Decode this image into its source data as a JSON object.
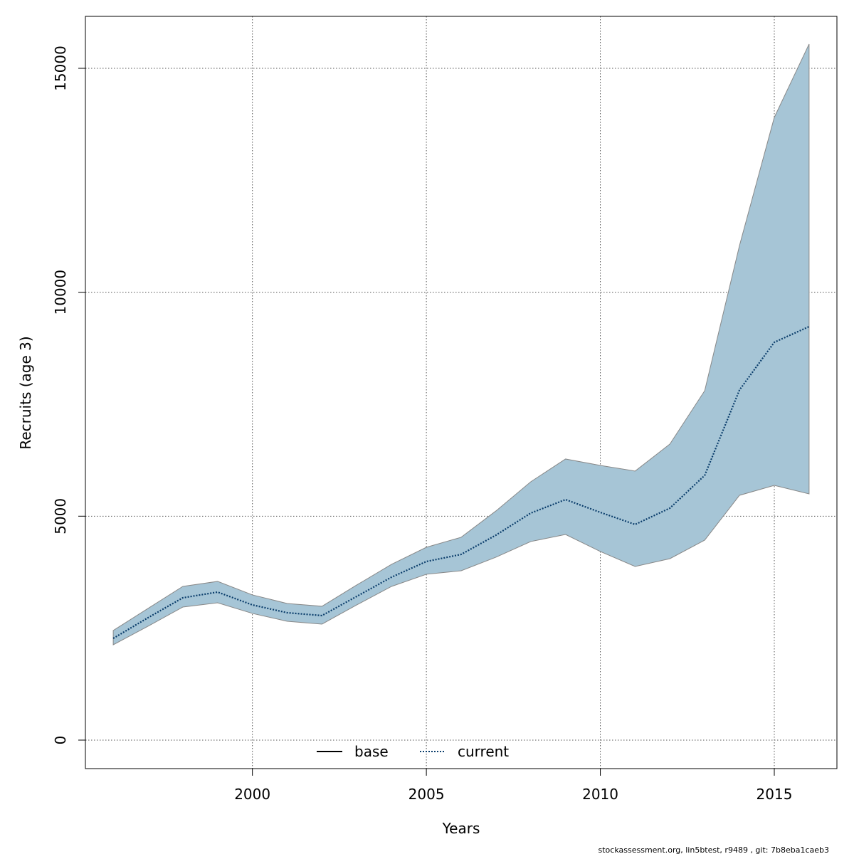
{
  "chart_data": {
    "type": "line",
    "x_label": "Years",
    "y_label": "Recruits (age 3)",
    "x": [
      1996,
      1997,
      1998,
      1999,
      2000,
      2001,
      2002,
      2003,
      2004,
      2005,
      2006,
      2007,
      2008,
      2009,
      2010,
      2011,
      2012,
      2013,
      2014,
      2015,
      2016
    ],
    "series": [
      {
        "name": "current",
        "color": "#0a3d6b",
        "band_color": "#a6c5d6",
        "values": [
          2272,
          2733,
          3178,
          3305,
          3019,
          2844,
          2781,
          3210,
          3639,
          3988,
          4147,
          4577,
          5069,
          5371,
          5085,
          4815,
          5180,
          5911,
          7818,
          8883,
          9233
        ],
        "lower": [
          2129,
          2543,
          2971,
          3067,
          2829,
          2654,
          2590,
          3019,
          3432,
          3703,
          3782,
          4084,
          4434,
          4592,
          4211,
          3877,
          4052,
          4465,
          5466,
          5689,
          5498
        ],
        "upper": [
          2447,
          2940,
          3432,
          3544,
          3242,
          3051,
          2988,
          3464,
          3925,
          4306,
          4529,
          5117,
          5768,
          6277,
          6134,
          6007,
          6611,
          7802,
          11044,
          13904,
          15541
        ]
      }
    ],
    "legend": [
      {
        "name": "base",
        "color": "#000000",
        "dash": "solid"
      },
      {
        "name": "current",
        "color": "#0a3d6b",
        "dash": "dotted"
      }
    ],
    "legend_position": "bottom",
    "xlim": [
      1995.2,
      2016.8
    ],
    "xticks": [
      2000,
      2005,
      2010,
      2015
    ],
    "ylim": [
      -636,
      16160
    ],
    "yticks": [
      0,
      5000,
      10000,
      15000
    ],
    "grid": true,
    "footer": "stockassessment.org, lin5btest, r9489 , git: 7b8eba1caeb3"
  }
}
